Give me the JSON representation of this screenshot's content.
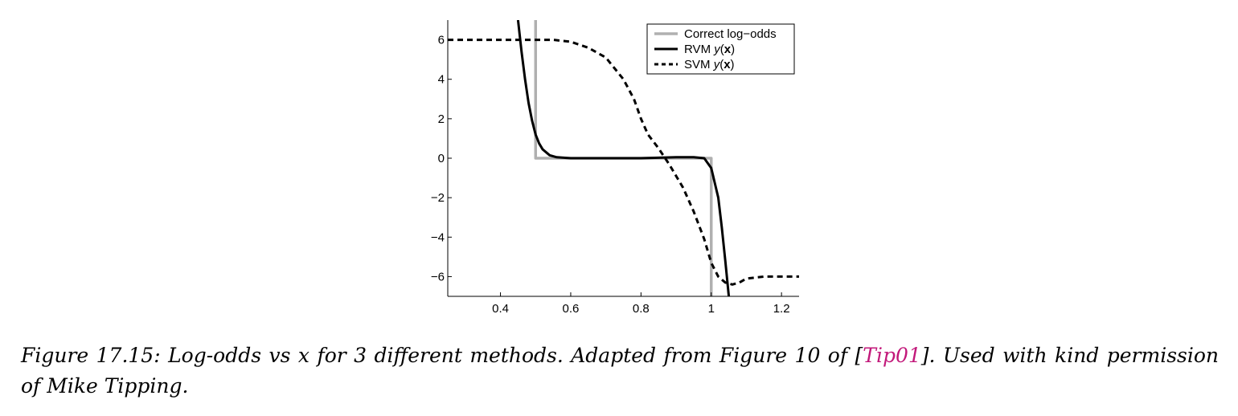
{
  "chart_data": {
    "type": "line",
    "title": "",
    "xlabel": "",
    "ylabel": "",
    "xlim": [
      0.25,
      1.25
    ],
    "ylim": [
      -7,
      7
    ],
    "xticks": [
      0.4,
      0.6,
      0.8,
      1.0,
      1.2
    ],
    "xtick_labels": [
      "0.4",
      "0.6",
      "0.8",
      "1",
      "1.2"
    ],
    "yticks": [
      -6,
      -4,
      -2,
      0,
      2,
      4,
      6
    ],
    "ytick_labels": [
      "-6",
      "-4",
      "-2",
      "0",
      "2",
      "4",
      "6"
    ],
    "grid": false,
    "legend_position": "top-right",
    "series": [
      {
        "name": "Correct log-odds",
        "color": "#b0b0b0",
        "style": "solid",
        "x": [
          0.5,
          0.5,
          0.5,
          1.0,
          1.0,
          1.0
        ],
        "y": [
          7,
          0,
          0,
          0,
          0,
          -7
        ]
      },
      {
        "name": "RVM y(x)",
        "color": "#000000",
        "style": "solid",
        "x": [
          0.45,
          0.46,
          0.47,
          0.48,
          0.49,
          0.5,
          0.51,
          0.52,
          0.54,
          0.56,
          0.6,
          0.7,
          0.8,
          0.9,
          0.95,
          0.98,
          1.0,
          1.02,
          1.03,
          1.04,
          1.05
        ],
        "y": [
          7.0,
          5.4,
          4.0,
          2.8,
          1.9,
          1.2,
          0.75,
          0.45,
          0.15,
          0.05,
          0.0,
          0.0,
          0.0,
          0.05,
          0.05,
          0.0,
          -0.5,
          -2.0,
          -3.5,
          -5.2,
          -7.0
        ]
      },
      {
        "name": "SVM y(x)",
        "color": "#000000",
        "style": "dashed",
        "x": [
          0.25,
          0.3,
          0.4,
          0.5,
          0.55,
          0.6,
          0.65,
          0.7,
          0.75,
          0.78,
          0.8,
          0.82,
          0.85,
          0.88,
          0.9,
          0.92,
          0.95,
          0.98,
          1.0,
          1.02,
          1.04,
          1.06,
          1.08,
          1.1,
          1.15,
          1.2,
          1.25
        ],
        "y": [
          6.0,
          6.0,
          6.0,
          6.0,
          6.0,
          5.9,
          5.6,
          5.1,
          4.0,
          3.0,
          2.0,
          1.2,
          0.5,
          -0.3,
          -0.9,
          -1.5,
          -2.7,
          -4.1,
          -5.3,
          -6.0,
          -6.3,
          -6.4,
          -6.3,
          -6.1,
          -6.0,
          -6.0,
          -6.0
        ]
      }
    ],
    "legend_entries": [
      {
        "name": "Correct log-odds",
        "parts": [
          {
            "t": "Correct log−odds",
            "s": ""
          }
        ]
      },
      {
        "name": "RVM y(x)",
        "parts": [
          {
            "t": "RVM ",
            "s": ""
          },
          {
            "t": "y",
            "s": "it"
          },
          {
            "t": "(",
            "s": ""
          },
          {
            "t": "x",
            "s": "bd"
          },
          {
            "t": ")",
            "s": ""
          }
        ]
      },
      {
        "name": "SVM y(x)",
        "parts": [
          {
            "t": "SVM ",
            "s": ""
          },
          {
            "t": "y",
            "s": "it"
          },
          {
            "t": "(",
            "s": ""
          },
          {
            "t": "x",
            "s": "bd"
          },
          {
            "t": ")",
            "s": ""
          }
        ]
      }
    ]
  },
  "caption": {
    "label": "Figure 17.15:",
    "text_before": " Log-odds vs x for 3 different methods. Adapted from Figure 10 of [",
    "citation": "Tip01",
    "text_after": "]. Used with kind permission of Mike Tipping."
  }
}
